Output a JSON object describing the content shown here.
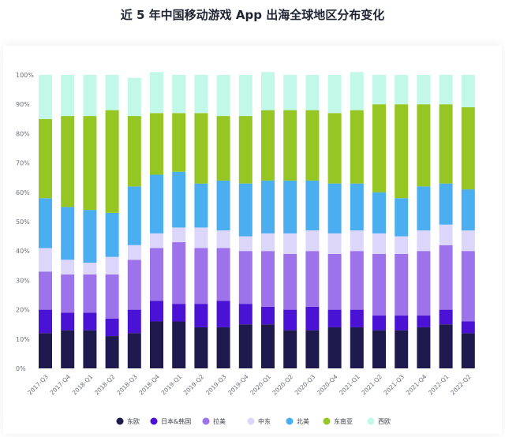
{
  "chart_data": {
    "type": "bar",
    "stacked": true,
    "title": "近 5 年中国移动游戏 App 出海全球地区分布变化",
    "xlabel": "",
    "ylabel": "",
    "ylim": [
      0,
      100
    ],
    "y_ticks": [
      "0%",
      "10%",
      "20%",
      "30%",
      "40%",
      "50%",
      "60%",
      "70%",
      "80%",
      "90%",
      "100%"
    ],
    "grid": false,
    "legend_position": "bottom",
    "categories": [
      "2017-Q3",
      "2017-Q4",
      "2018-Q1",
      "2018-Q2",
      "2018-Q3",
      "2018-Q4",
      "2019-Q1",
      "2019-Q2",
      "2019-Q3",
      "2019-Q4",
      "2020-Q1",
      "2020-Q2",
      "2020-Q3",
      "2020-Q4",
      "2021-Q1",
      "2021-Q2",
      "2021-Q3",
      "2021-Q4",
      "2022-Q1",
      "2022-Q2"
    ],
    "series": [
      {
        "name": "东欧",
        "color": "#1f1a4d",
        "values": [
          12,
          13,
          13,
          11,
          12,
          16,
          16,
          14,
          14,
          15,
          15,
          13,
          13,
          14,
          14,
          13,
          13,
          14,
          15,
          12
        ]
      },
      {
        "name": "日本&韩国",
        "color": "#4a12d4",
        "values": [
          8,
          6,
          6,
          6,
          8,
          7,
          6,
          8,
          9,
          7,
          6,
          7,
          8,
          6,
          6,
          5,
          5,
          4,
          5,
          4
        ]
      },
      {
        "name": "拉美",
        "color": "#9d73ec",
        "values": [
          13,
          13,
          13,
          15,
          17,
          18,
          21,
          19,
          18,
          18,
          19,
          19,
          19,
          19,
          20,
          21,
          21,
          22,
          22,
          24
        ]
      },
      {
        "name": "中东",
        "color": "#dcd6fa",
        "values": [
          8,
          5,
          4,
          6,
          5,
          5,
          5,
          7,
          6,
          5,
          6,
          7,
          7,
          7,
          7,
          7,
          6,
          7,
          7,
          7
        ]
      },
      {
        "name": "北美",
        "color": "#4aaef0",
        "values": [
          17,
          18,
          18,
          15,
          20,
          20,
          19,
          15,
          17,
          18,
          18,
          18,
          17,
          17,
          16,
          14,
          13,
          15,
          14,
          14
        ]
      },
      {
        "name": "东南亚",
        "color": "#96c623",
        "values": [
          27,
          31,
          32,
          35,
          24,
          21,
          20,
          24,
          22,
          23,
          24,
          24,
          24,
          24,
          25,
          30,
          32,
          28,
          27,
          28
        ]
      },
      {
        "name": "西欧",
        "color": "#c2f8e8",
        "values": [
          15,
          14,
          14,
          12,
          13,
          14,
          13,
          13,
          14,
          14,
          13,
          12,
          12,
          13,
          13,
          10,
          10,
          10,
          10,
          11
        ]
      }
    ]
  }
}
